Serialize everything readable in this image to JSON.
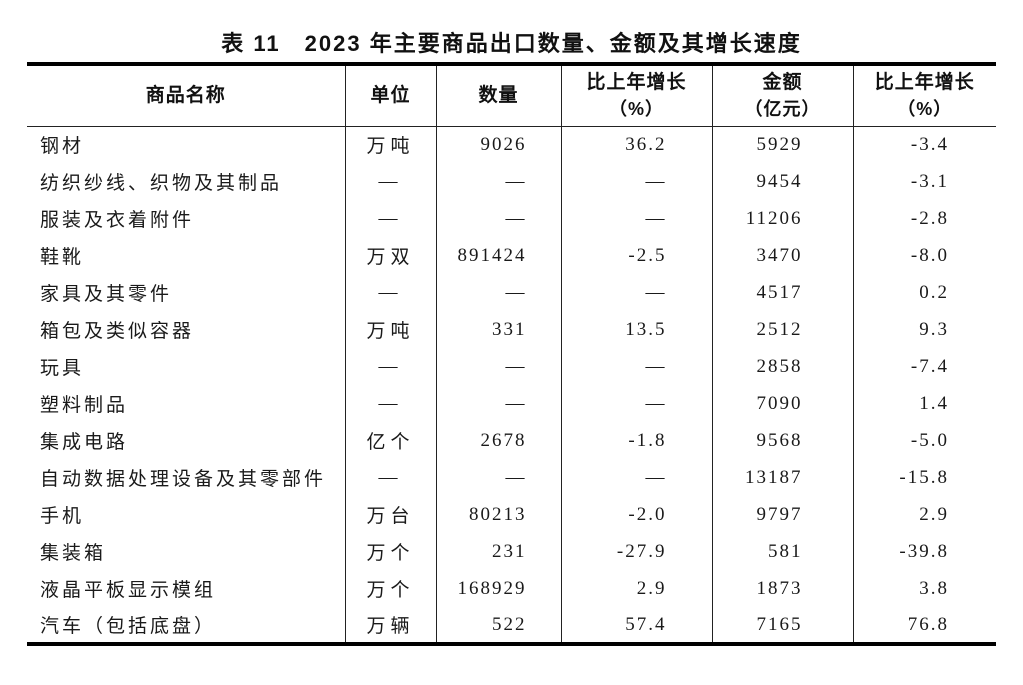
{
  "title": "表 11　2023 年主要商品出口数量、金额及其增长速度",
  "colors": {
    "text": "#1a1a1a",
    "border": "#000000",
    "background": "#ffffff"
  },
  "table": {
    "column_keys": [
      "commodity",
      "unit",
      "quantity",
      "quantity-growth",
      "value",
      "value-growth"
    ],
    "columns": [
      {
        "label": "商品名称",
        "sub": ""
      },
      {
        "label": "单位",
        "sub": ""
      },
      {
        "label": "数量",
        "sub": ""
      },
      {
        "label": "比上年增长",
        "sub": "（%）"
      },
      {
        "label": "金额",
        "sub": "（亿元）"
      },
      {
        "label": "比上年增长",
        "sub": "（%）"
      }
    ],
    "rows": [
      [
        "钢材",
        "万吨",
        "9026",
        "36.2",
        "5929",
        "-3.4"
      ],
      [
        "纺织纱线、织物及其制品",
        "—",
        "—",
        "—",
        "9454",
        "-3.1"
      ],
      [
        "服装及衣着附件",
        "—",
        "—",
        "—",
        "11206",
        "-2.8"
      ],
      [
        "鞋靴",
        "万双",
        "891424",
        "-2.5",
        "3470",
        "-8.0"
      ],
      [
        "家具及其零件",
        "—",
        "—",
        "—",
        "4517",
        "0.2"
      ],
      [
        "箱包及类似容器",
        "万吨",
        "331",
        "13.5",
        "2512",
        "9.3"
      ],
      [
        "玩具",
        "—",
        "—",
        "—",
        "2858",
        "-7.4"
      ],
      [
        "塑料制品",
        "—",
        "—",
        "—",
        "7090",
        "1.4"
      ],
      [
        "集成电路",
        "亿个",
        "2678",
        "-1.8",
        "9568",
        "-5.0"
      ],
      [
        "自动数据处理设备及其零部件",
        "—",
        "—",
        "—",
        "13187",
        "-15.8"
      ],
      [
        "手机",
        "万台",
        "80213",
        "-2.0",
        "9797",
        "2.9"
      ],
      [
        "集装箱",
        "万个",
        "231",
        "-27.9",
        "581",
        "-39.8"
      ],
      [
        "液晶平板显示模组",
        "万个",
        "168929",
        "2.9",
        "1873",
        "3.8"
      ],
      [
        "汽车（包括底盘）",
        "万辆",
        "522",
        "57.4",
        "7165",
        "76.8"
      ]
    ]
  }
}
